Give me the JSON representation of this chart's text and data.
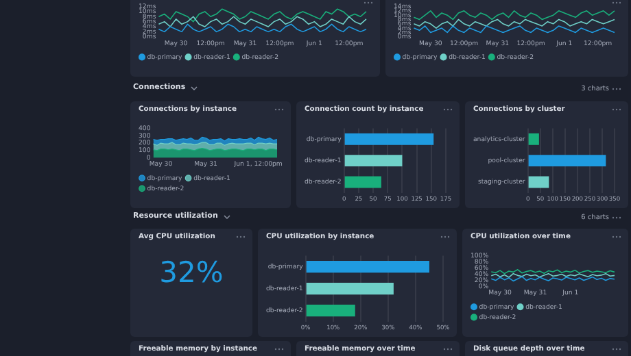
{
  "chart_data": [
    {
      "type": "line",
      "categories": [
        null,
        null,
        null,
        "May 30",
        null,
        null,
        null,
        null,
        null,
        "12:00pm",
        null,
        null,
        null,
        null,
        null,
        "May 31",
        null,
        null,
        null,
        null,
        null,
        "12:00pm",
        null,
        null,
        null,
        null,
        null,
        "Jun 1",
        null,
        null,
        null,
        null,
        null,
        "12:00pm",
        null,
        null,
        null
      ],
      "ylim": [
        0,
        12
      ],
      "yticks": [
        {
          "value": 0,
          "label": "0ms"
        },
        {
          "value": 2,
          "label": "2ms"
        },
        {
          "value": 4,
          "label": "4ms"
        },
        {
          "value": 6,
          "label": "6ms"
        },
        {
          "value": 8,
          "label": "8ms"
        },
        {
          "value": 10,
          "label": "10ms"
        },
        {
          "value": 12,
          "label": "12ms"
        }
      ],
      "legend": "bottom left",
      "marker": "none",
      "line_style": "solid",
      "series": [
        {
          "name": "db-primary",
          "color": "#1f9be0",
          "values": [
            3,
            2,
            4,
            3,
            2,
            5,
            3,
            2,
            3,
            4,
            2,
            3,
            5,
            4,
            2,
            3,
            2,
            4,
            3,
            2,
            3,
            2,
            4,
            5,
            3,
            2,
            3,
            4,
            2,
            3,
            5,
            3,
            2,
            4,
            3,
            2,
            3
          ]
        },
        {
          "name": "db-reader-1",
          "color": "#6fd0c8",
          "values": [
            5,
            6,
            4,
            7,
            5,
            6,
            8,
            5,
            4,
            6,
            7,
            5,
            6,
            8,
            6,
            5,
            7,
            6,
            5,
            4,
            6,
            7,
            5,
            6,
            8,
            7,
            5,
            6,
            4,
            5,
            7,
            6,
            5,
            8,
            6,
            5,
            7
          ]
        },
        {
          "name": "db-reader-2",
          "color": "#19b07c",
          "values": [
            8,
            9,
            7,
            10,
            9,
            8,
            6,
            9,
            10,
            8,
            9,
            11,
            10,
            9,
            7,
            8,
            10,
            9,
            8,
            7,
            9,
            10,
            8,
            7,
            9,
            10,
            9,
            8,
            7,
            10,
            9,
            11,
            10,
            8,
            9,
            8,
            10
          ]
        }
      ]
    },
    {
      "type": "line",
      "categories": [
        null,
        null,
        null,
        "May 30",
        null,
        null,
        null,
        null,
        null,
        "12:00pm",
        null,
        null,
        null,
        null,
        null,
        "May 31",
        null,
        null,
        null,
        null,
        null,
        "12:00pm",
        null,
        null,
        null,
        null,
        null,
        "Jun 1",
        null,
        null,
        null,
        null,
        null,
        "12:00pm",
        null,
        null,
        null
      ],
      "ylim": [
        0,
        14
      ],
      "yticks": [
        {
          "value": 0,
          "label": "0ms"
        },
        {
          "value": 2,
          "label": "2ms"
        },
        {
          "value": 4,
          "label": "4ms"
        },
        {
          "value": 6,
          "label": "6ms"
        },
        {
          "value": 8,
          "label": "8ms"
        },
        {
          "value": 10,
          "label": "10ms"
        },
        {
          "value": 12,
          "label": "12ms"
        },
        {
          "value": 14,
          "label": "14ms"
        }
      ],
      "legend": "bottom left",
      "marker": "none",
      "line_style": "solid",
      "series": [
        {
          "name": "db-primary",
          "color": "#1f9be0",
          "values": [
            4,
            3,
            5,
            2,
            3,
            4,
            2,
            5,
            3,
            2,
            4,
            3,
            2,
            5,
            4,
            3,
            2,
            3,
            4,
            5,
            3,
            2,
            4,
            3,
            2,
            3,
            5,
            4,
            3,
            2,
            4,
            3,
            2,
            3,
            4,
            3,
            2
          ]
        },
        {
          "name": "db-reader-1",
          "color": "#6fd0c8",
          "values": [
            6,
            5,
            7,
            6,
            4,
            6,
            7,
            5,
            8,
            6,
            5,
            7,
            6,
            5,
            7,
            8,
            6,
            5,
            7,
            6,
            8,
            7,
            6,
            5,
            7,
            6,
            8,
            7,
            5,
            6,
            7,
            6,
            8,
            7,
            6,
            7,
            8
          ]
        },
        {
          "name": "db-reader-2",
          "color": "#19b07c",
          "values": [
            9,
            8,
            10,
            12,
            9,
            11,
            10,
            8,
            11,
            12,
            10,
            9,
            11,
            10,
            8,
            10,
            11,
            9,
            12,
            10,
            9,
            11,
            10,
            8,
            9,
            10,
            12,
            11,
            10,
            9,
            11,
            12,
            10,
            11,
            12,
            10,
            12
          ]
        }
      ]
    },
    {
      "type": "other",
      "title": "Connections",
      "annotations": [
        "3 charts"
      ]
    },
    {
      "type": "area",
      "title": "Connections by instance",
      "stacked": true,
      "categories": [
        null,
        null,
        "May 30",
        null,
        null,
        null,
        null,
        null,
        null,
        null,
        null,
        null,
        null,
        null,
        "May 31",
        null,
        null,
        null,
        null,
        null,
        null,
        null,
        null,
        null,
        null,
        null,
        null,
        null,
        "Jun 1, 12:00pm",
        null,
        null,
        null,
        null,
        null
      ],
      "ylim": [
        0,
        400
      ],
      "yticks": [
        0,
        100,
        200,
        300,
        400
      ],
      "legend": "bottom left",
      "marker": "none",
      "series": [
        {
          "name": "db-reader-2",
          "color": "#19b07c",
          "values": [
            110,
            100,
            120,
            120,
            110,
            120,
            110,
            100,
            120,
            120,
            110,
            100,
            120,
            130,
            120,
            100,
            110,
            120,
            120,
            100,
            110,
            120,
            120,
            110,
            100,
            120,
            120,
            110,
            120,
            120,
            100,
            120,
            120,
            110
          ]
        },
        {
          "name": "db-reader-1",
          "color": "#6fd0c8",
          "values": [
            80,
            70,
            80,
            70,
            80,
            90,
            70,
            80,
            80,
            70,
            80,
            80,
            70,
            80,
            90,
            80,
            70,
            80,
            80,
            70,
            80,
            80,
            70,
            80,
            90,
            80,
            80,
            70,
            80,
            80,
            90,
            80,
            70,
            80
          ]
        },
        {
          "name": "db-primary",
          "color": "#1f9be0",
          "values": [
            60,
            70,
            50,
            60,
            70,
            50,
            60,
            70,
            60,
            60,
            80,
            60,
            50,
            70,
            60,
            60,
            70,
            50,
            60,
            60,
            70,
            50,
            60,
            70,
            60,
            50,
            70,
            60,
            80,
            60,
            60,
            70,
            50,
            60
          ]
        }
      ]
    },
    {
      "type": "bar",
      "title": "Connection count by instance",
      "orientation": "horizontal",
      "categories": [
        "db-primary",
        "db-reader-1",
        "db-reader-2"
      ],
      "values": [
        154,
        100,
        64
      ],
      "colors": [
        "#1f9be0",
        "#6fd0c8",
        "#19b07c"
      ],
      "xlim": [
        0,
        175
      ],
      "xticks": [
        0,
        25,
        50,
        75,
        100,
        125,
        150,
        175
      ],
      "grid": "x"
    },
    {
      "type": "bar",
      "title": "Connections by cluster",
      "orientation": "horizontal",
      "categories": [
        "analytics-cluster",
        "pool-cluster",
        "staging-cluster"
      ],
      "values": [
        45,
        315,
        85
      ],
      "colors": [
        "#19b07c",
        "#1f9be0",
        "#6fd0c8"
      ],
      "xlim": [
        0,
        350
      ],
      "xticks": [
        0,
        50,
        100,
        150,
        200,
        250,
        300,
        350
      ],
      "grid": "x"
    },
    {
      "type": "other",
      "title": "Resource utilization",
      "annotations": [
        "6 charts"
      ]
    },
    {
      "type": "other",
      "title": "Avg CPU utilization",
      "annotations": [
        "32%"
      ]
    },
    {
      "type": "bar",
      "title": "CPU utilization by instance",
      "orientation": "horizontal",
      "categories": [
        "db-primary",
        "db-reader-1",
        "db-reader-2"
      ],
      "values": [
        45,
        32,
        18
      ],
      "colors": [
        "#1f9be0",
        "#6fd0c8",
        "#19b07c"
      ],
      "xlim": [
        0,
        50
      ],
      "xticks": [
        {
          "value": 0,
          "label": "0%"
        },
        {
          "value": 10,
          "label": "10%"
        },
        {
          "value": 20,
          "label": "20%"
        },
        {
          "value": 30,
          "label": "30%"
        },
        {
          "value": 40,
          "label": "40%"
        },
        {
          "value": 50,
          "label": "50%"
        }
      ],
      "grid": "x"
    },
    {
      "type": "line",
      "title": "CPU utilization over time",
      "categories": [
        null,
        null,
        "May 30",
        null,
        null,
        null,
        null,
        null,
        null,
        null,
        "May 31",
        null,
        null,
        null,
        null,
        null,
        null,
        null,
        "Jun 1",
        null,
        null,
        null,
        null,
        null,
        null,
        null,
        null,
        null,
        null
      ],
      "ylim": [
        0,
        100
      ],
      "yticks": [
        {
          "value": 0,
          "label": "0%"
        },
        {
          "value": 20,
          "label": "20%"
        },
        {
          "value": 40,
          "label": "40%"
        },
        {
          "value": 60,
          "label": "60%"
        },
        {
          "value": 80,
          "label": "80%"
        },
        {
          "value": 100,
          "label": "100%"
        }
      ],
      "legend": "bottom left",
      "marker": "none",
      "line_style": "solid",
      "series": [
        {
          "name": "db-primary",
          "color": "#1f9be0",
          "values": [
            25,
            20,
            30,
            22,
            28,
            18,
            25,
            32,
            20,
            26,
            22,
            30,
            24,
            19,
            28,
            25,
            21,
            30,
            26,
            22,
            28,
            20,
            25,
            31,
            23,
            27,
            20,
            26,
            24
          ]
        },
        {
          "name": "db-reader-1",
          "color": "#6fd0c8",
          "values": [
            35,
            40,
            32,
            38,
            30,
            42,
            36,
            33,
            40,
            35,
            38,
            31,
            37,
            42,
            34,
            36,
            40,
            33,
            38,
            35,
            41,
            36,
            32,
            39,
            35,
            37,
            42,
            34,
            36
          ]
        },
        {
          "name": "db-reader-2",
          "color": "#19b07c",
          "values": [
            48,
            45,
            52,
            42,
            50,
            47,
            55,
            44,
            49,
            52,
            46,
            50,
            43,
            51,
            48,
            54,
            45,
            50,
            47,
            53,
            44,
            49,
            52,
            46,
            50,
            48,
            45,
            51,
            47
          ]
        }
      ]
    },
    {
      "type": "other",
      "title": "Freeable memory by instance"
    },
    {
      "type": "other",
      "title": "Freeable memory over time"
    },
    {
      "type": "other",
      "title": "Disk queue depth over time"
    }
  ]
}
